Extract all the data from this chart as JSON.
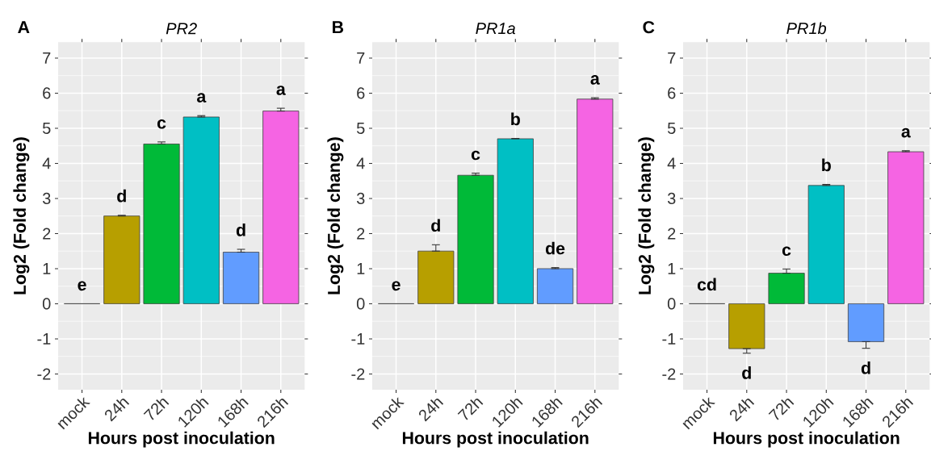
{
  "chart_data": [
    {
      "type": "bar",
      "title": "PR2",
      "xlabel": "Hours post inoculation",
      "ylabel": "Log2 (Fold change)",
      "categories": [
        "mock",
        "24h",
        "72h",
        "120h",
        "168h",
        "216h"
      ],
      "values": [
        0,
        2.5,
        4.55,
        5.32,
        1.47,
        5.49
      ],
      "colors": [
        "#f8766d",
        "#b79f00",
        "#00ba38",
        "#00bfc4",
        "#619cff",
        "#f564e3"
      ],
      "errors": [
        null,
        [
          2.5,
          2.52
        ],
        [
          4.55,
          4.61
        ],
        [
          5.32,
          5.36
        ],
        [
          1.47,
          1.55
        ],
        [
          5.49,
          5.57
        ]
      ],
      "ylim": [
        -2.45,
        7.45
      ],
      "yticks": [
        -2,
        -1,
        0,
        1,
        2,
        3,
        4,
        5,
        6,
        7
      ],
      "grid": true,
      "annotations": [
        "A",
        "e",
        "d",
        "c",
        "a",
        "d",
        "a"
      ]
    },
    {
      "type": "bar",
      "title": "PR1a",
      "xlabel": "Hours post inoculation",
      "ylabel": "Log2 (Fold change)",
      "categories": [
        "mock",
        "24h",
        "72h",
        "120h",
        "168h",
        "216h"
      ],
      "values": [
        0,
        1.5,
        3.66,
        4.7,
        1.0,
        5.83
      ],
      "colors": [
        "#f8766d",
        "#b79f00",
        "#00ba38",
        "#00bfc4",
        "#619cff",
        "#f564e3"
      ],
      "errors": [
        null,
        [
          1.5,
          1.68
        ],
        [
          3.66,
          3.72
        ],
        [
          4.7,
          4.71
        ],
        [
          1.0,
          1.03
        ],
        [
          5.83,
          5.87
        ]
      ],
      "ylim": [
        -2.45,
        7.45
      ],
      "yticks": [
        -2,
        -1,
        0,
        1,
        2,
        3,
        4,
        5,
        6,
        7
      ],
      "grid": true,
      "annotations": [
        "B",
        "e",
        "d",
        "c",
        "b",
        "de",
        "a"
      ]
    },
    {
      "type": "bar",
      "title": "PR1b",
      "xlabel": "Hours post inoculation",
      "ylabel": "Log2 (Fold change)",
      "categories": [
        "mock",
        "24h",
        "72h",
        "120h",
        "168h",
        "216h"
      ],
      "values": [
        0,
        -1.28,
        0.87,
        3.37,
        -1.08,
        4.33
      ],
      "colors": [
        "#f8766d",
        "#b79f00",
        "#00ba38",
        "#00bfc4",
        "#619cff",
        "#f564e3"
      ],
      "errors": [
        null,
        [
          -1.41,
          -1.28
        ],
        [
          0.87,
          0.99
        ],
        [
          3.37,
          3.4
        ],
        [
          -1.27,
          -1.08
        ],
        [
          4.33,
          4.36
        ]
      ],
      "ylim": [
        -2.45,
        7.45
      ],
      "yticks": [
        -2,
        -1,
        0,
        1,
        2,
        3,
        4,
        5,
        6,
        7
      ],
      "grid": true,
      "annotations": [
        "C",
        "cd",
        "d",
        "c",
        "b",
        "d",
        "a"
      ]
    }
  ]
}
